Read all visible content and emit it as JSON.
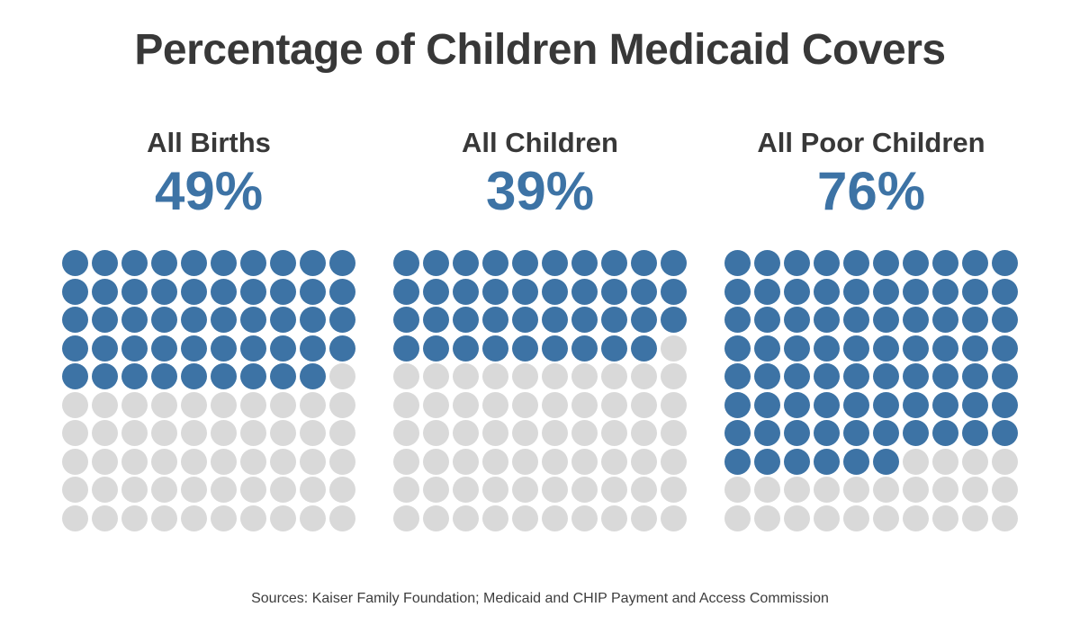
{
  "chart_data": {
    "type": "waffle",
    "title": "Percentage of Children Medicaid Covers",
    "categories": [
      "All Births",
      "All Children",
      "All Poor Children"
    ],
    "values": [
      49,
      39,
      76
    ],
    "value_labels": [
      "49%",
      "39%",
      "76%"
    ],
    "grid": {
      "rows": 10,
      "cols": 10,
      "dots_per_chart": 100,
      "fill_order": "left-to-right, top-to-bottom"
    },
    "colors": {
      "filled_dot": "#3d73a5",
      "empty_dot": "#d9d9d9",
      "heading_text": "#383838",
      "value_text": "#3d73a5",
      "background": "#ffffff"
    },
    "source_note": "Sources: Kaiser Family Foundation; Medicaid and CHIP Payment and Access Commission"
  }
}
